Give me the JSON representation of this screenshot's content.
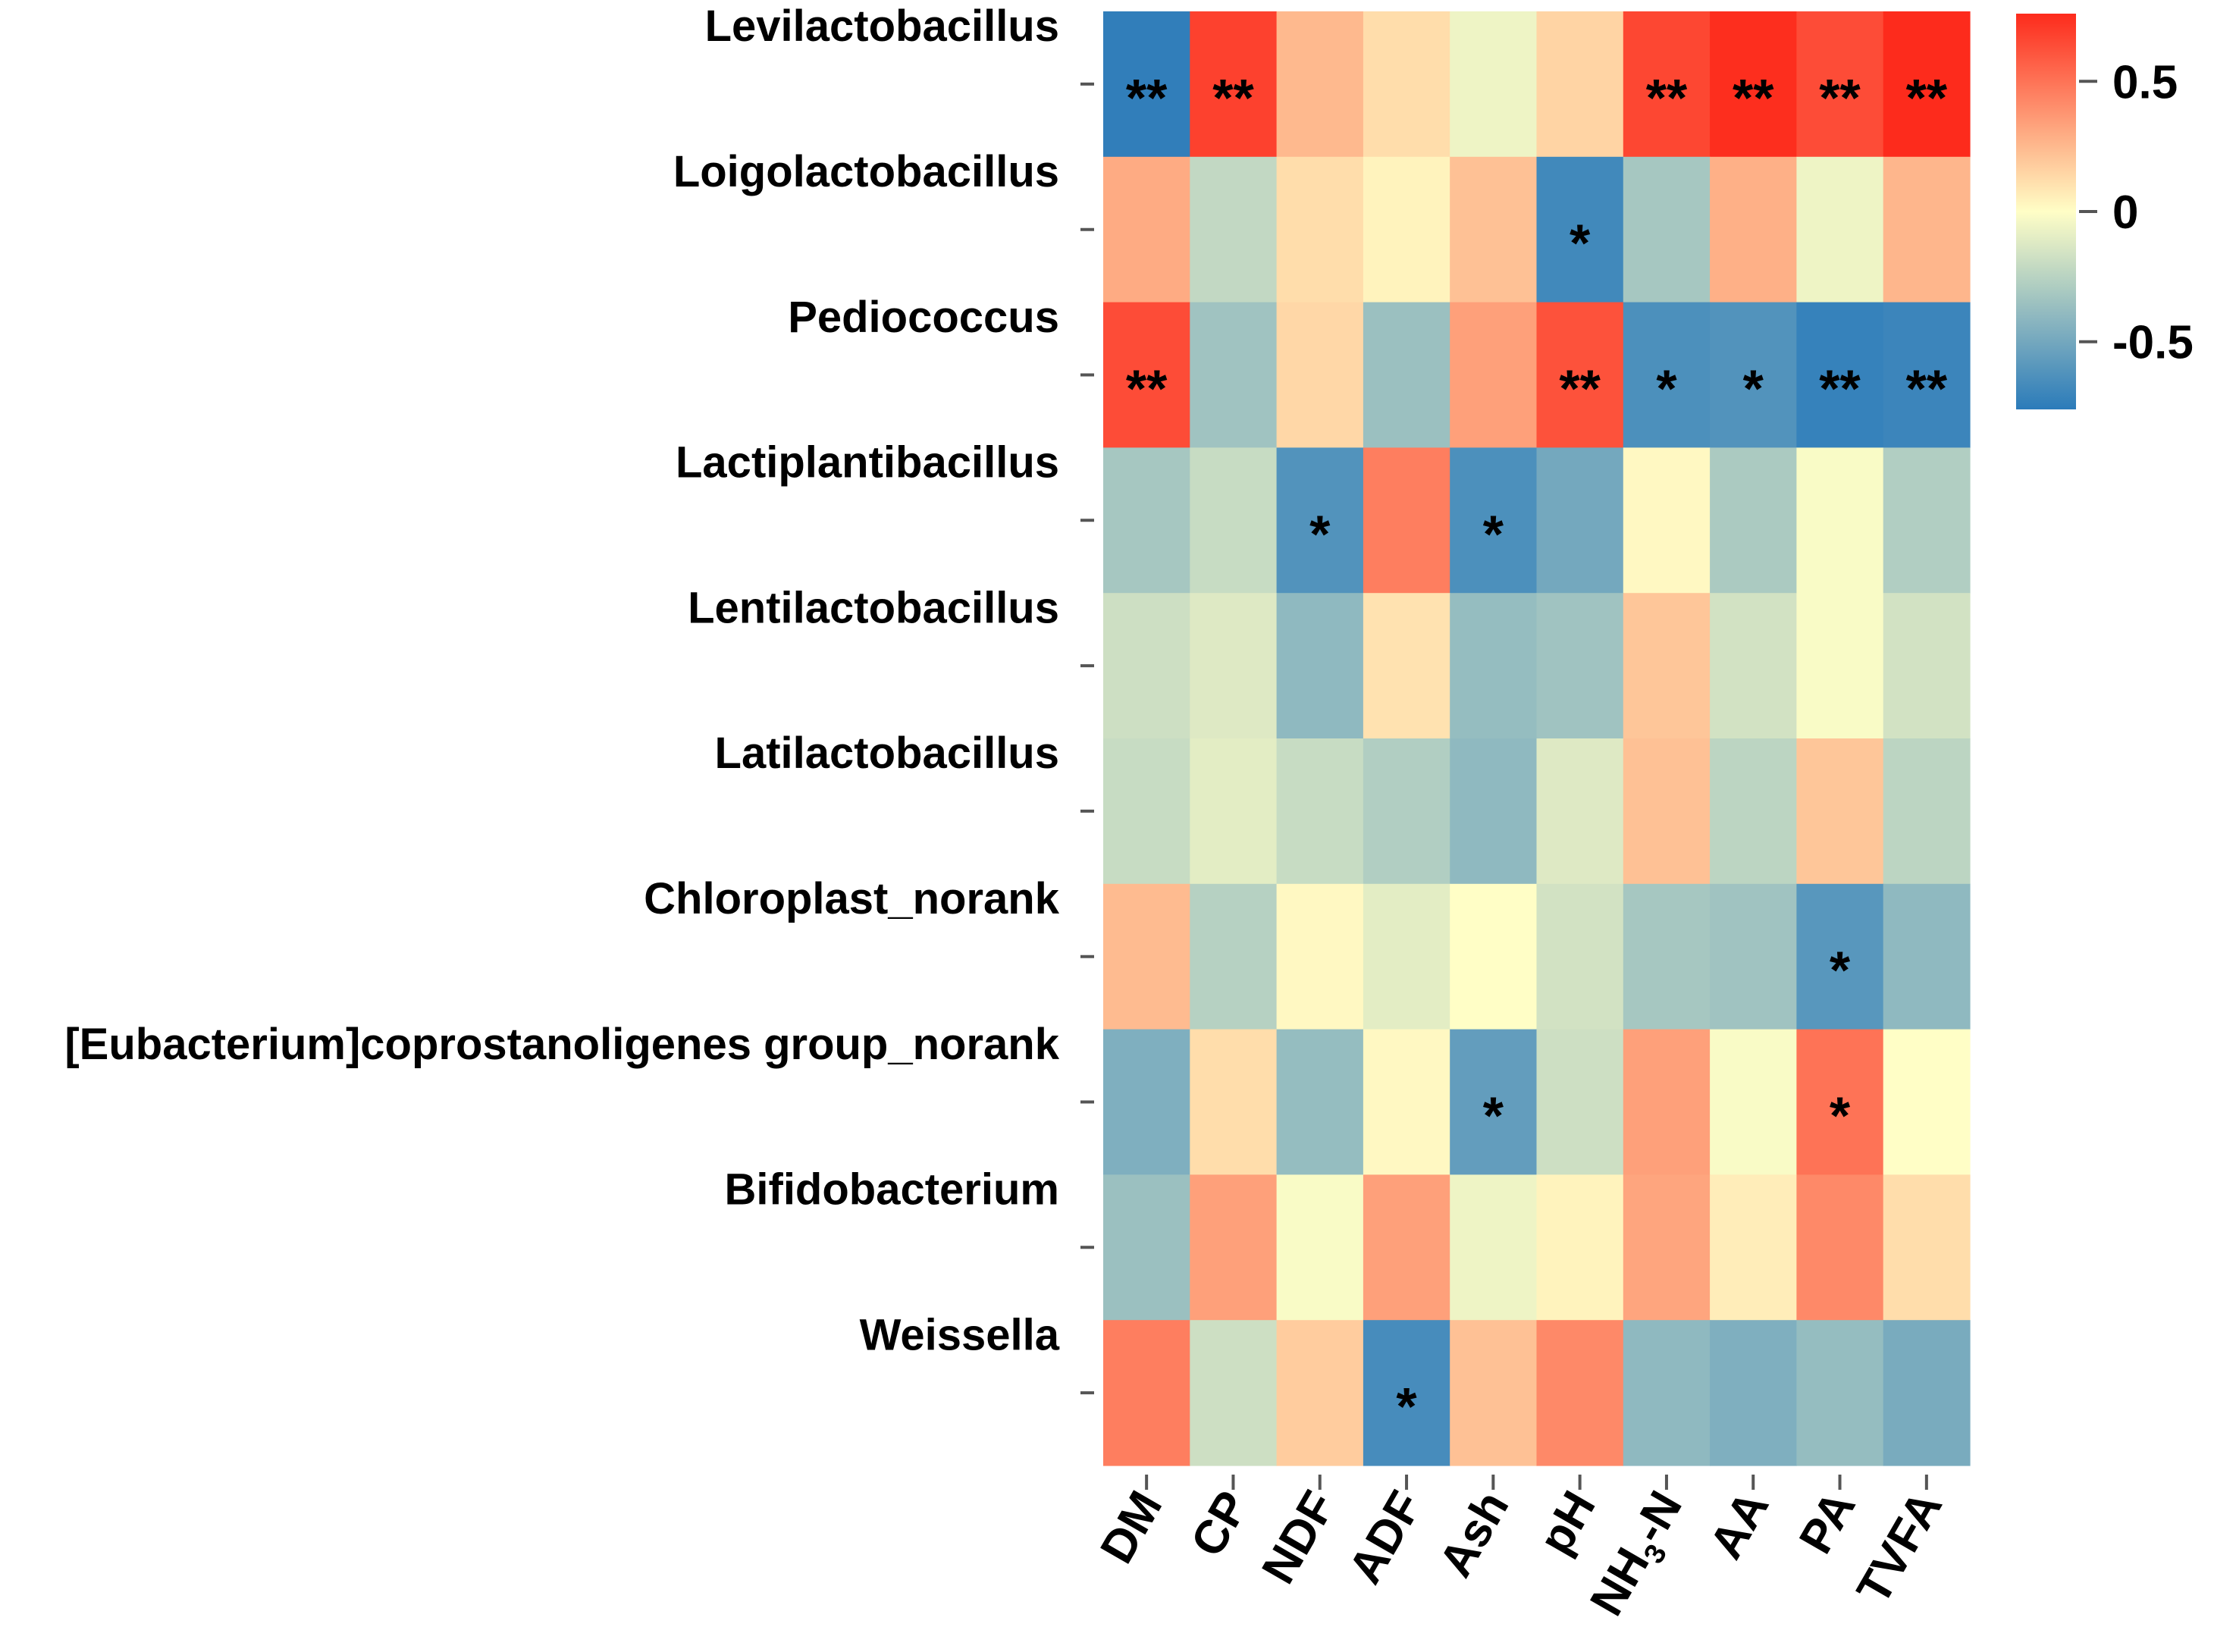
{
  "chart_data": {
    "type": "heatmap",
    "rows": [
      "Levilactobacillus",
      "Loigolactobacillus",
      "Pediococcus",
      "Lactiplantibacillus",
      "Lentilactobacillus",
      "Latilactobacillus",
      "Chloroplast_norank",
      "[Eubacterium]coprostanoligenes group_norank",
      "Bifidobacterium",
      "Weissella"
    ],
    "columns": [
      {
        "label": "DM"
      },
      {
        "label": "CP"
      },
      {
        "label": "NDF"
      },
      {
        "label": "ADF"
      },
      {
        "label": "Ash"
      },
      {
        "label": "pH"
      },
      {
        "label": "NH",
        "sub": "3",
        "suffix": "-N"
      },
      {
        "label": "AA"
      },
      {
        "label": "PA"
      },
      {
        "label": "TVFA"
      }
    ],
    "values": [
      [
        -0.74,
        0.68,
        0.25,
        0.12,
        -0.06,
        0.15,
        0.66,
        0.75,
        0.64,
        0.76
      ],
      [
        0.3,
        -0.22,
        0.12,
        0.04,
        0.22,
        -0.68,
        -0.32,
        0.28,
        -0.06,
        0.26
      ],
      [
        0.64,
        -0.34,
        0.14,
        -0.36,
        0.34,
        0.62,
        -0.64,
        -0.62,
        -0.72,
        -0.7
      ],
      [
        -0.32,
        -0.2,
        -0.62,
        0.46,
        -0.64,
        -0.5,
        0.02,
        -0.3,
        -0.02,
        -0.28
      ],
      [
        -0.18,
        -0.12,
        -0.4,
        0.1,
        -0.38,
        -0.34,
        0.2,
        -0.16,
        -0.02,
        -0.16
      ],
      [
        -0.2,
        -0.1,
        -0.2,
        -0.28,
        -0.4,
        -0.12,
        0.22,
        -0.24,
        0.2,
        -0.24
      ],
      [
        0.24,
        -0.26,
        0.02,
        -0.1,
        0.0,
        -0.16,
        -0.32,
        -0.34,
        -0.6,
        -0.4
      ],
      [
        -0.46,
        0.12,
        -0.38,
        0.02,
        -0.56,
        -0.18,
        0.34,
        -0.02,
        0.5,
        0.0
      ],
      [
        -0.36,
        0.34,
        -0.02,
        0.34,
        -0.06,
        0.04,
        0.32,
        0.06,
        0.42,
        0.12
      ],
      [
        0.46,
        -0.18,
        0.18,
        -0.66,
        0.22,
        0.42,
        -0.4,
        -0.46,
        -0.38,
        -0.48
      ]
    ],
    "significance": [
      [
        "**",
        "**",
        "",
        "",
        "",
        "",
        "**",
        "**",
        "**",
        "**"
      ],
      [
        "",
        "",
        "",
        "",
        "",
        "*",
        "",
        "",
        "",
        ""
      ],
      [
        "**",
        "",
        "",
        "",
        "",
        "**",
        "*",
        "*",
        "**",
        "**"
      ],
      [
        "",
        "",
        "*",
        "",
        "*",
        "",
        "",
        "",
        "",
        ""
      ],
      [
        "",
        "",
        "",
        "",
        "",
        "",
        "",
        "",
        "",
        ""
      ],
      [
        "",
        "",
        "",
        "",
        "",
        "",
        "",
        "",
        "",
        ""
      ],
      [
        "",
        "",
        "",
        "",
        "",
        "",
        "",
        "",
        "*",
        ""
      ],
      [
        "",
        "",
        "",
        "",
        "*",
        "",
        "",
        "",
        "*",
        ""
      ],
      [
        "",
        "",
        "",
        "",
        "",
        "",
        "",
        "",
        "",
        ""
      ],
      [
        "",
        "",
        "",
        "*",
        "",
        "",
        "",
        "",
        "",
        ""
      ]
    ],
    "colorbar": {
      "range": [
        -0.76,
        0.76
      ],
      "ticks": [
        0.5,
        0,
        -0.5
      ],
      "tick_labels": [
        "0.5",
        "0",
        "-0.5"
      ],
      "colors": [
        "#2b7bba",
        "#fffec6",
        "#fd2b1c"
      ]
    }
  }
}
